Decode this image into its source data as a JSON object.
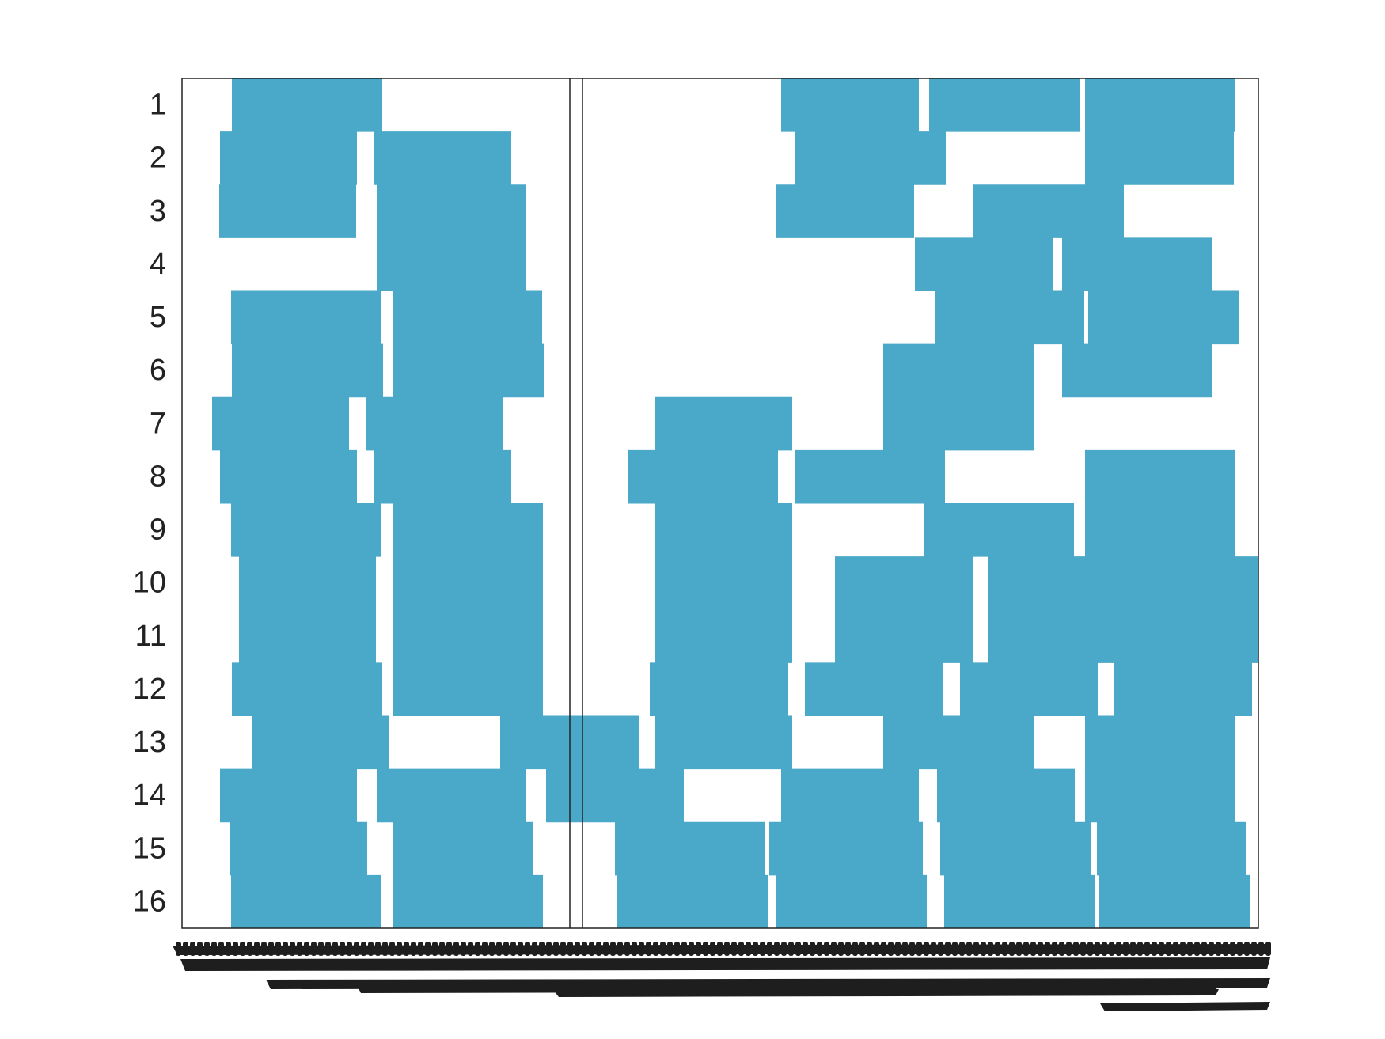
{
  "chart_data": {
    "type": "gantt",
    "title": "",
    "xlabel": "",
    "ylabel": "",
    "rows": [
      "1",
      "2",
      "3",
      "4",
      "5",
      "6",
      "7",
      "8",
      "9",
      "10",
      "11",
      "12",
      "13",
      "14",
      "15",
      "16"
    ],
    "xlim": [
      0,
      1360
    ],
    "divider_x": [
      490,
      506
    ],
    "bar_color": "#4aa8c8",
    "grid": false,
    "legend": "none",
    "x_tick_labels_legible": false,
    "bars": [
      {
        "row": 1,
        "intervals": [
          [
            63,
            253
          ],
          [
            757,
            931
          ],
          [
            944,
            1134
          ],
          [
            1141,
            1330
          ]
        ]
      },
      {
        "row": 2,
        "intervals": [
          [
            48,
            221
          ],
          [
            243,
            416
          ],
          [
            775,
            965
          ],
          [
            1141,
            1329
          ]
        ]
      },
      {
        "row": 3,
        "intervals": [
          [
            47,
            220
          ],
          [
            246,
            435
          ],
          [
            751,
            925
          ],
          [
            1000,
            1190
          ]
        ]
      },
      {
        "row": 4,
        "intervals": [
          [
            246,
            435
          ],
          [
            926,
            1100
          ],
          [
            1112,
            1301
          ]
        ]
      },
      {
        "row": 5,
        "intervals": [
          [
            62,
            252
          ],
          [
            267,
            455
          ],
          [
            951,
            1140
          ],
          [
            1145,
            1335
          ]
        ]
      },
      {
        "row": 6,
        "intervals": [
          [
            63,
            254
          ],
          [
            267,
            457
          ],
          [
            886,
            1076
          ],
          [
            1112,
            1301
          ]
        ]
      },
      {
        "row": 7,
        "intervals": [
          [
            38,
            211
          ],
          [
            233,
            406
          ],
          [
            597,
            771
          ],
          [
            886,
            1076
          ]
        ]
      },
      {
        "row": 8,
        "intervals": [
          [
            48,
            221
          ],
          [
            243,
            416
          ],
          [
            563,
            753
          ],
          [
            774,
            964
          ],
          [
            1141,
            1330
          ]
        ]
      },
      {
        "row": 9,
        "intervals": [
          [
            62,
            252
          ],
          [
            267,
            456
          ],
          [
            597,
            771
          ],
          [
            938,
            1127
          ],
          [
            1141,
            1330
          ]
        ]
      },
      {
        "row": 10,
        "intervals": [
          [
            72,
            245
          ],
          [
            267,
            456
          ],
          [
            597,
            771
          ],
          [
            825,
            999
          ],
          [
            1019,
            1208
          ],
          [
            1206,
            1360
          ]
        ]
      },
      {
        "row": 11,
        "intervals": [
          [
            72,
            245
          ],
          [
            267,
            456
          ],
          [
            597,
            771
          ],
          [
            825,
            999
          ],
          [
            1019,
            1208
          ],
          [
            1206,
            1360
          ]
        ]
      },
      {
        "row": 12,
        "intervals": [
          [
            63,
            253
          ],
          [
            267,
            456
          ],
          [
            591,
            766
          ],
          [
            787,
            962
          ],
          [
            983,
            1157
          ],
          [
            1177,
            1352
          ]
        ]
      },
      {
        "row": 13,
        "intervals": [
          [
            88,
            261
          ],
          [
            402,
            577
          ],
          [
            597,
            771
          ],
          [
            886,
            1076
          ],
          [
            1141,
            1330
          ]
        ]
      },
      {
        "row": 14,
        "intervals": [
          [
            48,
            221
          ],
          [
            246,
            435
          ],
          [
            460,
            634
          ],
          [
            757,
            931
          ],
          [
            954,
            1128
          ],
          [
            1141,
            1330
          ]
        ]
      },
      {
        "row": 15,
        "intervals": [
          [
            60,
            234
          ],
          [
            267,
            443
          ],
          [
            547,
            737
          ],
          [
            742,
            936
          ],
          [
            958,
            1148
          ],
          [
            1156,
            1345
          ]
        ]
      },
      {
        "row": 16,
        "intervals": [
          [
            62,
            252
          ],
          [
            267,
            456
          ],
          [
            550,
            740
          ],
          [
            751,
            941
          ],
          [
            963,
            1153
          ],
          [
            1159,
            1349
          ]
        ]
      }
    ]
  }
}
